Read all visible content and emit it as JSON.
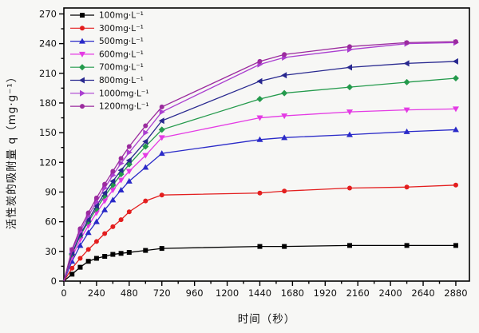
{
  "figure": {
    "background": "#f7f7f5",
    "frame_color": "#000000",
    "tick_color": "#000000",
    "text_color": "#111111"
  },
  "chart_data": {
    "type": "line",
    "title": "",
    "xlabel": "时间（秒）",
    "ylabel": "活性炭的吸附量 q（mg·g⁻¹）",
    "grid": false,
    "legend_position": "top-left",
    "xlim": [
      0,
      2980
    ],
    "ylim": [
      0,
      276
    ],
    "xticks": [
      0,
      240,
      480,
      720,
      960,
      1200,
      1440,
      1680,
      1920,
      2160,
      2400,
      2640,
      2880
    ],
    "xminor_step": 120,
    "yticks": [
      0,
      30,
      60,
      90,
      120,
      150,
      180,
      210,
      240,
      270
    ],
    "yminor_step": 15,
    "x": [
      0,
      60,
      120,
      180,
      240,
      300,
      360,
      420,
      480,
      600,
      720,
      1440,
      1620,
      2100,
      2520,
      2880
    ],
    "series": [
      {
        "name": "100mg·L⁻¹",
        "color": "#000000",
        "marker": "square",
        "values": [
          0,
          7,
          14,
          20,
          23,
          25,
          27,
          28,
          29,
          31,
          33,
          35,
          35,
          36,
          36,
          36
        ]
      },
      {
        "name": "300mg·L⁻¹",
        "color": "#e31e1e",
        "marker": "circle",
        "values": [
          0,
          13,
          23,
          32,
          40,
          48,
          55,
          62,
          70,
          81,
          87,
          89,
          91,
          94,
          95,
          97
        ]
      },
      {
        "name": "500mg·L⁻¹",
        "color": "#2a2ac8",
        "marker": "triangle-up",
        "values": [
          0,
          20,
          36,
          49,
          60,
          72,
          82,
          92,
          101,
          115,
          129,
          143,
          145,
          148,
          151,
          153
        ]
      },
      {
        "name": "600mg·L⁻¹",
        "color": "#e43ae4",
        "marker": "triangle-down",
        "values": [
          0,
          24,
          42,
          56,
          69,
          81,
          92,
          102,
          111,
          127,
          145,
          165,
          167,
          171,
          173,
          174
        ]
      },
      {
        "name": "700mg·L⁻¹",
        "color": "#249a4c",
        "marker": "diamond",
        "values": [
          0,
          27,
          46,
          60,
          73,
          86,
          97,
          108,
          118,
          136,
          153,
          184,
          190,
          196,
          201,
          205
        ]
      },
      {
        "name": "800mg·L⁻¹",
        "color": "#28288f",
        "marker": "triangle-left",
        "values": [
          0,
          28,
          47,
          62,
          76,
          89,
          101,
          112,
          122,
          141,
          162,
          202,
          208,
          216,
          220,
          222
        ]
      },
      {
        "name": "1000mg·L⁻¹",
        "color": "#aa3fd0",
        "marker": "triangle-right",
        "values": [
          0,
          31,
          50,
          66,
          80,
          94,
          107,
          119,
          130,
          150,
          171,
          219,
          226,
          234,
          240,
          241
        ]
      },
      {
        "name": "1200mg·L⁻¹",
        "color": "#9b2b9e",
        "marker": "circle",
        "values": [
          0,
          32,
          53,
          69,
          84,
          98,
          111,
          124,
          136,
          157,
          176,
          222,
          229,
          237,
          241,
          242
        ]
      }
    ]
  }
}
